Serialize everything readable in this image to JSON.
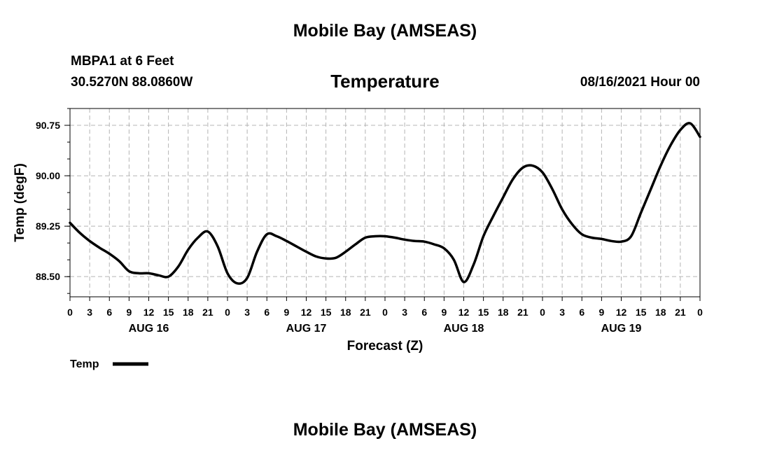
{
  "header": {
    "main_title": "Mobile Bay (AMSEAS)",
    "station": "MBPA1 at 6 Feet",
    "coords": "30.5270N  88.0860W",
    "variable_title": "Temperature",
    "datetime": "08/16/2021 Hour 00"
  },
  "footer": {
    "main_title": "Mobile Bay (AMSEAS)"
  },
  "chart_data": {
    "type": "line",
    "title": "Temperature",
    "xlabel": "Forecast (Z)",
    "ylabel": "Temp (degF)",
    "x_range_hours": [
      0,
      96
    ],
    "ylim": [
      88.2,
      91.0
    ],
    "y_ticks": [
      88.5,
      89.25,
      90.0,
      90.75
    ],
    "y_tick_labels": [
      "88.50",
      "89.25",
      "90.00",
      "90.75"
    ],
    "x_tick_hours": [
      0,
      3,
      6,
      9,
      12,
      15,
      18,
      21,
      24,
      27,
      30,
      33,
      36,
      39,
      42,
      45,
      48,
      51,
      54,
      57,
      60,
      63,
      66,
      69,
      72,
      75,
      78,
      81,
      84,
      87,
      90,
      93,
      96
    ],
    "x_tick_labels": [
      "0",
      "3",
      "6",
      "9",
      "12",
      "15",
      "18",
      "21",
      "0",
      "3",
      "6",
      "9",
      "12",
      "15",
      "18",
      "21",
      "0",
      "3",
      "6",
      "9",
      "12",
      "15",
      "18",
      "21",
      "0",
      "3",
      "6",
      "9",
      "12",
      "15",
      "18",
      "21",
      "0"
    ],
    "day_labels": [
      {
        "hour": 12,
        "label": "AUG 16"
      },
      {
        "hour": 36,
        "label": "AUG 17"
      },
      {
        "hour": 60,
        "label": "AUG 18"
      },
      {
        "hour": 84,
        "label": "AUG 19"
      }
    ],
    "grid": true,
    "legend": {
      "position": "bottom-left",
      "label": "Temp",
      "color": "#000000"
    },
    "series": [
      {
        "name": "Temp",
        "color": "#000000",
        "x": [
          0,
          1.5,
          3,
          4.5,
          6,
          7.5,
          9,
          10.5,
          12,
          13.5,
          15,
          16.5,
          18,
          19.5,
          21,
          22.5,
          24,
          25.5,
          27,
          28.5,
          30,
          31.5,
          33,
          34.5,
          36,
          37.5,
          39,
          40.5,
          42,
          43.5,
          45,
          46.5,
          48,
          49.5,
          51,
          52.5,
          54,
          55.5,
          57,
          58.5,
          60,
          61.5,
          63,
          64.5,
          66,
          67.5,
          69,
          70.5,
          72,
          73.5,
          75,
          76.5,
          78,
          79.5,
          81,
          82.5,
          84,
          85.5,
          87,
          88.5,
          90,
          91.5,
          93,
          94.5,
          96
        ],
        "y": [
          89.3,
          89.15,
          89.03,
          88.93,
          88.84,
          88.73,
          88.58,
          88.55,
          88.55,
          88.52,
          88.5,
          88.65,
          88.9,
          89.08,
          89.17,
          88.95,
          88.55,
          88.4,
          88.48,
          88.87,
          89.13,
          89.1,
          89.03,
          88.95,
          88.87,
          88.8,
          88.77,
          88.78,
          88.87,
          88.98,
          89.08,
          89.1,
          89.1,
          89.08,
          89.05,
          89.03,
          89.02,
          88.98,
          88.92,
          88.75,
          88.42,
          88.68,
          89.1,
          89.4,
          89.68,
          89.95,
          90.12,
          90.15,
          90.05,
          89.8,
          89.5,
          89.28,
          89.13,
          89.08,
          89.06,
          89.03,
          89.02,
          89.1,
          89.45,
          89.8,
          90.15,
          90.45,
          90.68,
          90.78,
          90.58
        ]
      }
    ]
  }
}
